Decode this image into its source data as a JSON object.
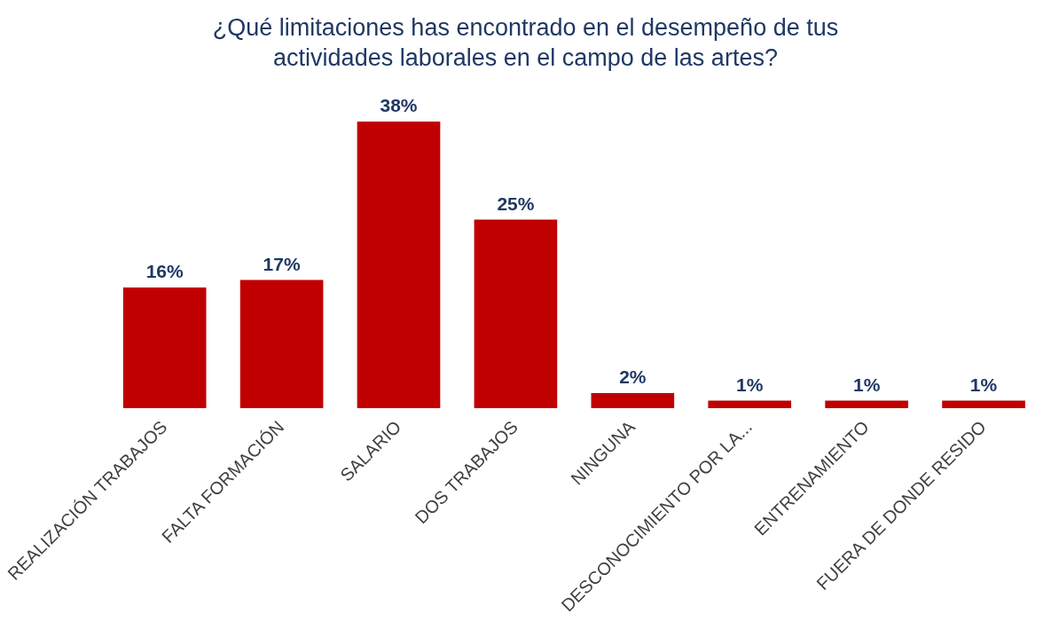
{
  "chart_data": {
    "type": "bar",
    "title": "¿Qué limitaciones has encontrado en el desempeño de tus actividades laborales en el campo de las artes?",
    "categories": [
      "REALIZACIÓN TRABAJOS",
      "FALTA FORMACIÓN",
      "SALARIO",
      "DOS TRABAJOS",
      "NINGUNA",
      "DESCONOCIMIENTO POR LA...",
      "ENTRENAMIENTO",
      "FUERA DE DONDE RESIDO"
    ],
    "values": [
      16,
      17,
      38,
      25,
      2,
      1,
      1,
      1
    ],
    "value_labels": [
      "16%",
      "17%",
      "38%",
      "25%",
      "2%",
      "1%",
      "1%",
      "1%"
    ],
    "color": "#c00000"
  }
}
